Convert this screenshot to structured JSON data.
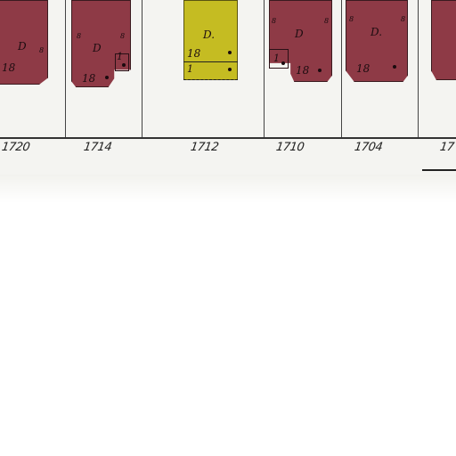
{
  "map": {
    "addresses": {
      "a1720": "1720",
      "a1714": "1714",
      "a1712": "1712",
      "a1710": "1710",
      "a1704": "1704",
      "a17x": "17"
    },
    "buildings": {
      "b1": {
        "type_mark": "D",
        "height": "8",
        "stories": "18"
      },
      "b2": {
        "type_mark": "D",
        "height_left": "8",
        "height_right": "8",
        "stories": "18",
        "annex": "1"
      },
      "b3": {
        "type_mark": "D.",
        "stories": "18",
        "annex": "1"
      },
      "b4": {
        "type_mark": "D",
        "height_left": "8",
        "height_right": "8",
        "stories": "18",
        "annex": "1"
      },
      "b5": {
        "type_mark": "D.",
        "height_left": "8",
        "height_right": "8",
        "stories": "18"
      }
    },
    "colors": {
      "brick": "#8e3a46",
      "frame": "#c5bc22",
      "paper": "#f4f4f1"
    }
  }
}
